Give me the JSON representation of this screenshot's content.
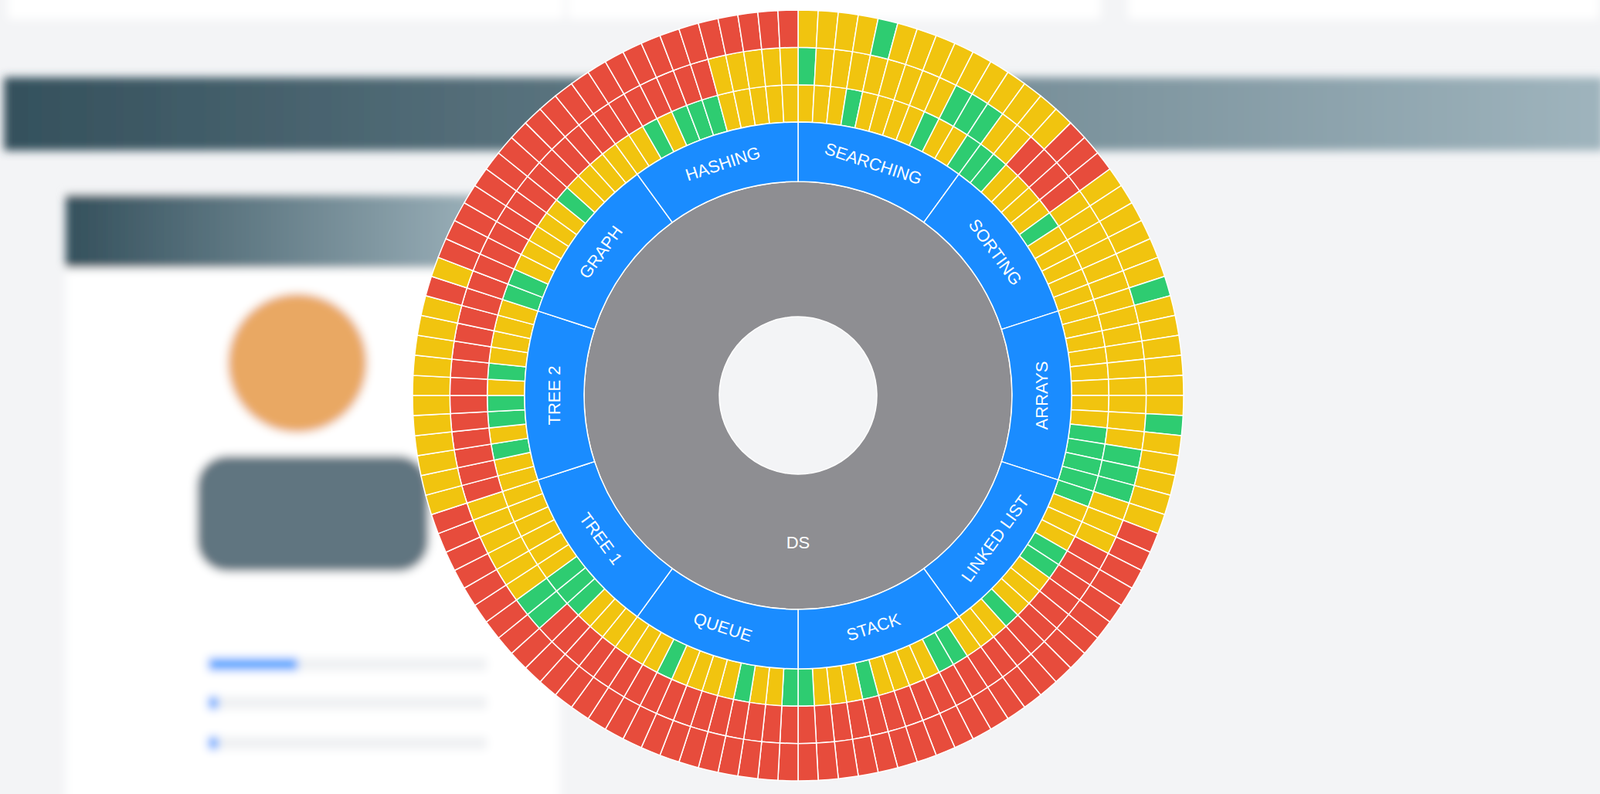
{
  "chart_data": {
    "type": "sunburst",
    "root": "DS",
    "series": [
      {
        "name": "SEARCHING",
        "rings": [
          {
            "colors": [
              "#f1c40f",
              "#f1c40f",
              "#f1c40f",
              "#2ecc71",
              "#f1c40f",
              "#f1c40f",
              "#f1c40f",
              "#f1c40f",
              "#2ecc71",
              "#f1c40f",
              "#f1c40f",
              "#2ecc71"
            ]
          },
          {
            "colors": [
              "#2ecc71",
              "#f1c40f",
              "#f1c40f",
              "#f1c40f",
              "#f1c40f",
              "#f1c40f",
              "#f1c40f",
              "#f1c40f",
              "#f1c40f",
              "#2ecc71",
              "#2ecc71",
              "#2ecc71"
            ]
          },
          {
            "colors": [
              "#f1c40f",
              "#f1c40f",
              "#f1c40f",
              "#f1c40f",
              "#2ecc71",
              "#f1c40f",
              "#f1c40f",
              "#f1c40f",
              "#f1c40f",
              "#f1c40f",
              "#f1c40f",
              "#f1c40f"
            ]
          }
        ]
      },
      {
        "name": "SORTING",
        "rings": [
          {
            "colors": [
              "#2ecc71",
              "#2ecc71",
              "#f1c40f",
              "#f1c40f",
              "#f1c40f",
              "#f1c40f",
              "#2ecc71",
              "#f1c40f",
              "#f1c40f",
              "#f1c40f",
              "#f1c40f",
              "#f1c40f"
            ]
          },
          {
            "colors": [
              "#f1c40f",
              "#f1c40f",
              "#e74c3c",
              "#e74c3c",
              "#e74c3c",
              "#e74c3c",
              "#f1c40f",
              "#f1c40f",
              "#f1c40f",
              "#f1c40f",
              "#f1c40f",
              "#f1c40f"
            ]
          },
          {
            "colors": [
              "#f1c40f",
              "#f1c40f",
              "#f1c40f",
              "#e74c3c",
              "#e74c3c",
              "#e74c3c",
              "#f1c40f",
              "#f1c40f",
              "#f1c40f",
              "#f1c40f",
              "#f1c40f",
              "#f1c40f"
            ]
          }
        ]
      },
      {
        "name": "ARRAYS",
        "rings": [
          {
            "colors": [
              "#f1c40f",
              "#f1c40f",
              "#f1c40f",
              "#f1c40f",
              "#f1c40f",
              "#f1c40f",
              "#f1c40f",
              "#f1c40f",
              "#2ecc71",
              "#2ecc71",
              "#2ecc71",
              "#2ecc71"
            ]
          },
          {
            "colors": [
              "#f1c40f",
              "#f1c40f",
              "#f1c40f",
              "#f1c40f",
              "#f1c40f",
              "#f1c40f",
              "#f1c40f",
              "#f1c40f",
              "#f1c40f",
              "#2ecc71",
              "#2ecc71",
              "#2ecc71"
            ]
          },
          {
            "colors": [
              "#2ecc71",
              "#f1c40f",
              "#f1c40f",
              "#f1c40f",
              "#f1c40f",
              "#f1c40f",
              "#f1c40f",
              "#2ecc71",
              "#f1c40f",
              "#f1c40f",
              "#f1c40f",
              "#f1c40f"
            ]
          }
        ]
      },
      {
        "name": "LINKED LIST",
        "rings": [
          {
            "colors": [
              "#2ecc71",
              "#f1c40f",
              "#f1c40f",
              "#f1c40f",
              "#2ecc71",
              "#2ecc71",
              "#f1c40f",
              "#f1c40f",
              "#f1c40f",
              "#2ecc71",
              "#f1c40f",
              "#f1c40f"
            ]
          },
          {
            "colors": [
              "#f1c40f",
              "#f1c40f",
              "#f1c40f",
              "#e74c3c",
              "#e74c3c",
              "#e74c3c",
              "#e74c3c",
              "#e74c3c",
              "#e74c3c",
              "#e74c3c",
              "#e74c3c",
              "#e74c3c"
            ]
          },
          {
            "colors": [
              "#f1c40f",
              "#e74c3c",
              "#e74c3c",
              "#e74c3c",
              "#e74c3c",
              "#e74c3c",
              "#e74c3c",
              "#e74c3c",
              "#e74c3c",
              "#e74c3c",
              "#e74c3c",
              "#e74c3c"
            ]
          }
        ]
      },
      {
        "name": "STACK",
        "rings": [
          {
            "colors": [
              "#f1c40f",
              "#2ecc71",
              "#2ecc71",
              "#f1c40f",
              "#f1c40f",
              "#f1c40f",
              "#f1c40f",
              "#2ecc71",
              "#f1c40f",
              "#f1c40f",
              "#f1c40f",
              "#2ecc71"
            ]
          },
          {
            "colors": [
              "#e74c3c",
              "#e74c3c",
              "#e74c3c",
              "#e74c3c",
              "#e74c3c",
              "#e74c3c",
              "#e74c3c",
              "#e74c3c",
              "#e74c3c",
              "#e74c3c",
              "#e74c3c",
              "#e74c3c"
            ]
          },
          {
            "colors": [
              "#e74c3c",
              "#e74c3c",
              "#e74c3c",
              "#e74c3c",
              "#e74c3c",
              "#e74c3c",
              "#e74c3c",
              "#e74c3c",
              "#e74c3c",
              "#e74c3c",
              "#e74c3c",
              "#e74c3c"
            ]
          }
        ]
      },
      {
        "name": "QUEUE",
        "rings": [
          {
            "colors": [
              "#2ecc71",
              "#f1c40f",
              "#f1c40f",
              "#2ecc71",
              "#f1c40f",
              "#f1c40f",
              "#f1c40f",
              "#f1c40f",
              "#2ecc71",
              "#f1c40f",
              "#f1c40f",
              "#f1c40f"
            ]
          },
          {
            "colors": [
              "#e74c3c",
              "#e74c3c",
              "#e74c3c",
              "#e74c3c",
              "#e74c3c",
              "#e74c3c",
              "#e74c3c",
              "#e74c3c",
              "#e74c3c",
              "#e74c3c",
              "#e74c3c",
              "#e74c3c"
            ]
          },
          {
            "colors": [
              "#e74c3c",
              "#e74c3c",
              "#e74c3c",
              "#e74c3c",
              "#e74c3c",
              "#e74c3c",
              "#e74c3c",
              "#e74c3c",
              "#e74c3c",
              "#e74c3c",
              "#e74c3c",
              "#e74c3c"
            ]
          }
        ]
      },
      {
        "name": "TREE 1",
        "rings": [
          {
            "colors": [
              "#f1c40f",
              "#f1c40f",
              "#f1c40f",
              "#2ecc71",
              "#2ecc71",
              "#2ecc71",
              "#f1c40f",
              "#f1c40f",
              "#f1c40f",
              "#f1c40f",
              "#f1c40f",
              "#f1c40f"
            ]
          },
          {
            "colors": [
              "#e74c3c",
              "#e74c3c",
              "#e74c3c",
              "#e74c3c",
              "#2ecc71",
              "#2ecc71",
              "#f1c40f",
              "#f1c40f",
              "#f1c40f",
              "#f1c40f",
              "#f1c40f",
              "#f1c40f"
            ]
          },
          {
            "colors": [
              "#e74c3c",
              "#e74c3c",
              "#e74c3c",
              "#e74c3c",
              "#e74c3c",
              "#e74c3c",
              "#e74c3c",
              "#e74c3c",
              "#e74c3c",
              "#e74c3c",
              "#e74c3c",
              "#e74c3c"
            ]
          }
        ]
      },
      {
        "name": "TREE 2",
        "rings": [
          {
            "colors": [
              "#f1c40f",
              "#f1c40f",
              "#2ecc71",
              "#f1c40f",
              "#2ecc71",
              "#2ecc71",
              "#f1c40f",
              "#2ecc71",
              "#f1c40f",
              "#f1c40f",
              "#f1c40f",
              "#f1c40f"
            ]
          },
          {
            "colors": [
              "#e74c3c",
              "#e74c3c",
              "#e74c3c",
              "#e74c3c",
              "#e74c3c",
              "#e74c3c",
              "#e74c3c",
              "#e74c3c",
              "#e74c3c",
              "#e74c3c",
              "#e74c3c",
              "#e74c3c"
            ]
          },
          {
            "colors": [
              "#f1c40f",
              "#f1c40f",
              "#f1c40f",
              "#f1c40f",
              "#f1c40f",
              "#f1c40f",
              "#f1c40f",
              "#f1c40f",
              "#f1c40f",
              "#f1c40f",
              "#f1c40f",
              "#e74c3c"
            ]
          }
        ]
      },
      {
        "name": "GRAPH",
        "rings": [
          {
            "colors": [
              "#2ecc71",
              "#2ecc71",
              "#f1c40f",
              "#f1c40f",
              "#f1c40f",
              "#f1c40f",
              "#f1c40f",
              "#2ecc71",
              "#f1c40f",
              "#f1c40f",
              "#f1c40f",
              "#f1c40f"
            ]
          },
          {
            "colors": [
              "#e74c3c",
              "#e74c3c",
              "#e74c3c",
              "#e74c3c",
              "#e74c3c",
              "#e74c3c",
              "#e74c3c",
              "#e74c3c",
              "#e74c3c",
              "#e74c3c",
              "#e74c3c",
              "#e74c3c"
            ]
          },
          {
            "colors": [
              "#f1c40f",
              "#e74c3c",
              "#e74c3c",
              "#e74c3c",
              "#e74c3c",
              "#e74c3c",
              "#e74c3c",
              "#e74c3c",
              "#e74c3c",
              "#e74c3c",
              "#e74c3c",
              "#e74c3c"
            ]
          }
        ]
      },
      {
        "name": "HASHING",
        "rings": [
          {
            "colors": [
              "#f1c40f",
              "#f1c40f",
              "#2ecc71",
              "#f1c40f",
              "#2ecc71",
              "#2ecc71",
              "#2ecc71",
              "#f1c40f",
              "#f1c40f",
              "#f1c40f",
              "#f1c40f",
              "#f1c40f"
            ]
          },
          {
            "colors": [
              "#e74c3c",
              "#e74c3c",
              "#e74c3c",
              "#e74c3c",
              "#e74c3c",
              "#e74c3c",
              "#e74c3c",
              "#f1c40f",
              "#f1c40f",
              "#f1c40f",
              "#f1c40f",
              "#f1c40f"
            ]
          },
          {
            "colors": [
              "#e74c3c",
              "#e74c3c",
              "#e74c3c",
              "#e74c3c",
              "#e74c3c",
              "#e74c3c",
              "#e74c3c",
              "#e74c3c",
              "#e74c3c",
              "#e74c3c",
              "#e74c3c",
              "#e74c3c"
            ]
          }
        ]
      }
    ]
  }
}
